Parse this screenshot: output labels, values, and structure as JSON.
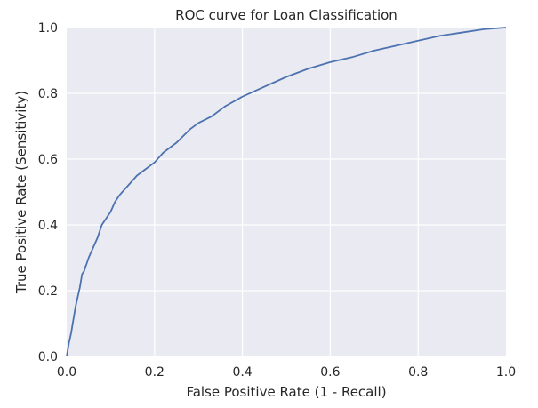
{
  "chart_data": {
    "type": "line",
    "title": "ROC curve for Loan Classification",
    "xlabel": "False Positive Rate (1 - Recall)",
    "ylabel": "True Positive Rate (Sensitivity)",
    "xlim": [
      0.0,
      1.0
    ],
    "ylim": [
      0.0,
      1.0
    ],
    "grid": true,
    "legend": "none",
    "colors": {
      "background": "#eaeaf2",
      "grid": "#ffffff",
      "line": "#4c72b0",
      "text": "#262626"
    },
    "x_ticks": [
      0.0,
      0.2,
      0.4,
      0.6,
      0.8,
      1.0
    ],
    "y_ticks": [
      0.0,
      0.2,
      0.4,
      0.6,
      0.8,
      1.0
    ],
    "x_tick_labels": [
      "0.0",
      "0.2",
      "0.4",
      "0.6",
      "0.8",
      "1.0"
    ],
    "y_tick_labels": [
      "0.0",
      "0.2",
      "0.4",
      "0.6",
      "0.8",
      "1.0"
    ],
    "series": [
      {
        "x": [
          0.0,
          0.005,
          0.01,
          0.015,
          0.02,
          0.025,
          0.03,
          0.035,
          0.04,
          0.042,
          0.045,
          0.05,
          0.06,
          0.07,
          0.08,
          0.09,
          0.1,
          0.11,
          0.12,
          0.14,
          0.16,
          0.18,
          0.2,
          0.22,
          0.25,
          0.28,
          0.3,
          0.33,
          0.36,
          0.4,
          0.45,
          0.5,
          0.55,
          0.6,
          0.65,
          0.7,
          0.75,
          0.8,
          0.85,
          0.9,
          0.95,
          1.0
        ],
        "y": [
          0.0,
          0.04,
          0.07,
          0.11,
          0.15,
          0.18,
          0.21,
          0.25,
          0.26,
          0.27,
          0.28,
          0.3,
          0.33,
          0.36,
          0.4,
          0.42,
          0.44,
          0.47,
          0.49,
          0.52,
          0.55,
          0.57,
          0.59,
          0.62,
          0.65,
          0.69,
          0.71,
          0.73,
          0.76,
          0.79,
          0.82,
          0.85,
          0.875,
          0.895,
          0.91,
          0.93,
          0.945,
          0.96,
          0.975,
          0.985,
          0.995,
          1.0
        ]
      }
    ]
  }
}
